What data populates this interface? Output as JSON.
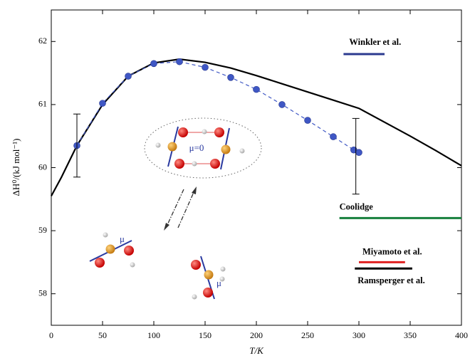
{
  "chart_data": {
    "type": "line",
    "x_label": "T/K",
    "y_label": "ΔH⁰/(kJ mol⁻¹)",
    "xlim": [
      0,
      400
    ],
    "ylim": [
      57.5,
      62.5
    ],
    "xticks": [
      0,
      50,
      100,
      150,
      200,
      250,
      300,
      350,
      400
    ],
    "yticks": [
      58,
      59,
      60,
      61,
      62
    ],
    "series": [
      {
        "color": "#000000",
        "style": "solid",
        "x": [
          0,
          10,
          25,
          50,
          75,
          100,
          125,
          150,
          175,
          200,
          225,
          250,
          275,
          300,
          325,
          350,
          375,
          400
        ],
        "values": [
          59.55,
          59.85,
          60.35,
          61.0,
          61.45,
          61.66,
          61.72,
          61.67,
          61.58,
          61.46,
          61.33,
          61.2,
          61.07,
          60.94,
          60.72,
          60.5,
          60.27,
          60.03
        ]
      },
      {
        "color": "#3f57c4",
        "style": "dashed",
        "markers": true,
        "x": [
          25,
          50,
          75,
          100,
          125,
          150,
          175,
          200,
          225,
          250,
          275,
          295,
          300
        ],
        "values": [
          60.35,
          61.02,
          61.45,
          61.65,
          61.68,
          61.59,
          61.43,
          61.24,
          61.0,
          60.75,
          60.49,
          60.28,
          60.24
        ]
      },
      {
        "name": "Winkler et al.",
        "color": "#2b3a8f",
        "style": "solid",
        "x": [
          285,
          325
        ],
        "values": [
          61.8,
          61.8
        ]
      },
      {
        "name": "Coolidge",
        "color": "#17803d",
        "style": "solid",
        "x": [
          281,
          400
        ],
        "values": [
          59.2,
          59.2
        ]
      },
      {
        "name": "Miyamoto et al.",
        "color": "#e02020",
        "style": "solid",
        "x": [
          300,
          345
        ],
        "values": [
          58.5,
          58.5
        ]
      },
      {
        "name": "Ramsperger et al.",
        "color": "#000000",
        "style": "solid",
        "x": [
          296,
          352
        ],
        "values": [
          58.4,
          58.4
        ]
      }
    ],
    "error_bars": {
      "x": [
        25,
        297
      ],
      "values": [
        60.35,
        60.18
      ],
      "errors": [
        0.5,
        0.6
      ]
    },
    "annotations": [
      "μ=0",
      "μ",
      "μ"
    ]
  }
}
